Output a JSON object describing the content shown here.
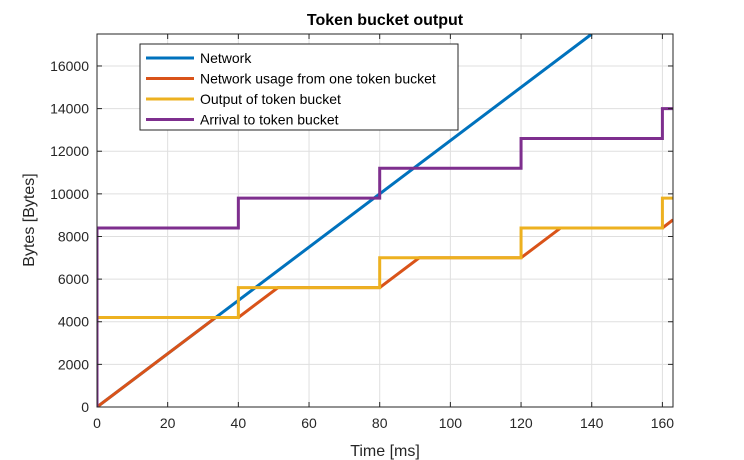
{
  "chart_data": {
    "type": "line",
    "title": "Token bucket output",
    "xlabel": "Time [ms]",
    "ylabel": "Bytes [Bytes]",
    "xlim": [
      0,
      163
    ],
    "ylim": [
      0,
      17500
    ],
    "xticks": [
      0,
      20,
      40,
      60,
      80,
      100,
      120,
      140,
      160
    ],
    "yticks": [
      0,
      2000,
      4000,
      6000,
      8000,
      10000,
      12000,
      14000,
      16000
    ],
    "grid": true,
    "legend_position": "top-left",
    "series": [
      {
        "name": "Network",
        "color": "#0072BD",
        "x": [
          0,
          140
        ],
        "y": [
          0,
          17500
        ]
      },
      {
        "name": "Network usage from one token bucket",
        "color": "#D95319",
        "x": [
          0,
          33.6,
          40,
          51.2,
          80,
          91.2,
          120,
          131.2,
          160,
          163
        ],
        "y": [
          0,
          4200,
          4200,
          5600,
          5600,
          7000,
          7000,
          8400,
          8400,
          8780
        ]
      },
      {
        "name": "Output of token bucket",
        "color": "#EDB120",
        "x": [
          0,
          40,
          40,
          80,
          80,
          120,
          120,
          160,
          160,
          163
        ],
        "y": [
          4200,
          4200,
          5600,
          5600,
          7000,
          7000,
          8400,
          8400,
          9800,
          9800
        ]
      },
      {
        "name": "Arrival to token bucket",
        "color": "#7E2F8E",
        "x": [
          0,
          0,
          40,
          40,
          80,
          80,
          120,
          120,
          160,
          160,
          163
        ],
        "y": [
          0,
          8400,
          8400,
          9800,
          9800,
          11200,
          11200,
          12600,
          12600,
          14000,
          14000
        ]
      }
    ]
  }
}
